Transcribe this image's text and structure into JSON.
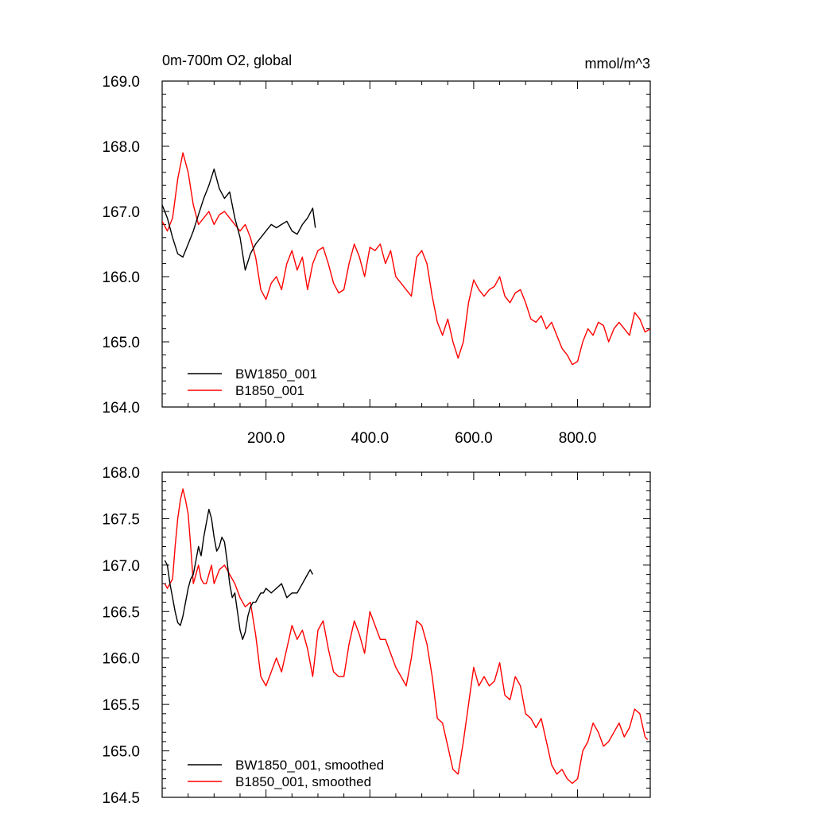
{
  "chart_data": [
    {
      "type": "line",
      "title": "0m-700m O2, global",
      "units": "mmol/m^3",
      "xlim": [
        0,
        940
      ],
      "ylim": [
        164.0,
        169.0
      ],
      "x_ticks": [
        200,
        400,
        600,
        800
      ],
      "x_tick_labels": [
        "200.0",
        "400.0",
        "600.0",
        "800.0"
      ],
      "y_ticks": [
        164,
        165,
        166,
        167,
        168,
        169
      ],
      "y_tick_labels": [
        "164.0",
        "165.0",
        "166.0",
        "167.0",
        "168.0",
        "169.0"
      ],
      "legend": "bottom-left",
      "series": [
        {
          "name": "BW1850_001",
          "color": "#000000",
          "x": [
            0,
            10,
            20,
            30,
            40,
            50,
            60,
            70,
            80,
            90,
            100,
            110,
            120,
            130,
            140,
            150,
            160,
            170,
            180,
            190,
            200,
            210,
            220,
            230,
            240,
            250,
            260,
            270,
            280,
            290,
            295
          ],
          "y": [
            167.1,
            166.9,
            166.6,
            166.35,
            166.3,
            166.5,
            166.7,
            166.95,
            167.2,
            167.4,
            167.65,
            167.35,
            167.2,
            167.3,
            166.9,
            166.6,
            166.1,
            166.35,
            166.5,
            166.6,
            166.7,
            166.8,
            166.75,
            166.8,
            166.85,
            166.7,
            166.65,
            166.8,
            166.9,
            167.05,
            166.75
          ]
        },
        {
          "name": "B1850_001",
          "color": "#ff0000",
          "x": [
            0,
            10,
            20,
            30,
            40,
            50,
            60,
            70,
            80,
            90,
            100,
            110,
            120,
            130,
            140,
            150,
            160,
            170,
            180,
            190,
            200,
            210,
            220,
            230,
            240,
            250,
            260,
            270,
            280,
            290,
            300,
            310,
            320,
            330,
            340,
            350,
            360,
            370,
            380,
            390,
            400,
            410,
            420,
            430,
            440,
            450,
            460,
            470,
            480,
            490,
            500,
            510,
            520,
            530,
            540,
            550,
            560,
            570,
            580,
            590,
            600,
            610,
            620,
            630,
            640,
            650,
            660,
            670,
            680,
            690,
            700,
            710,
            720,
            730,
            740,
            750,
            760,
            770,
            780,
            790,
            800,
            810,
            820,
            830,
            840,
            850,
            860,
            870,
            880,
            890,
            900,
            910,
            920,
            930,
            940
          ],
          "y": [
            166.85,
            166.7,
            166.9,
            167.5,
            167.9,
            167.6,
            167.1,
            166.8,
            166.9,
            167.0,
            166.8,
            166.95,
            167.0,
            166.9,
            166.8,
            166.7,
            166.8,
            166.6,
            166.3,
            165.8,
            165.65,
            165.9,
            166.0,
            165.8,
            166.2,
            166.4,
            166.1,
            166.3,
            165.8,
            166.2,
            166.4,
            166.45,
            166.2,
            165.9,
            165.75,
            165.8,
            166.2,
            166.5,
            166.3,
            166.0,
            166.45,
            166.4,
            166.5,
            166.2,
            166.4,
            166.0,
            165.9,
            165.8,
            165.7,
            166.3,
            166.4,
            166.2,
            165.7,
            165.3,
            165.1,
            165.35,
            165.0,
            164.75,
            165.0,
            165.6,
            165.95,
            165.8,
            165.7,
            165.8,
            165.85,
            166.0,
            165.7,
            165.6,
            165.75,
            165.8,
            165.6,
            165.35,
            165.3,
            165.4,
            165.2,
            165.3,
            165.1,
            164.9,
            164.8,
            164.65,
            164.7,
            165.0,
            165.2,
            165.1,
            165.3,
            165.25,
            165.0,
            165.2,
            165.3,
            165.2,
            165.1,
            165.45,
            165.35,
            165.15,
            165.2
          ]
        }
      ]
    },
    {
      "type": "line",
      "xlim": [
        0,
        940
      ],
      "ylim": [
        164.5,
        168.0
      ],
      "y_ticks": [
        164.5,
        165.0,
        165.5,
        166.0,
        166.5,
        167.0,
        167.5,
        168.0
      ],
      "y_tick_labels": [
        "164.5",
        "165.0",
        "165.5",
        "166.0",
        "166.5",
        "167.0",
        "167.5",
        "168.0"
      ],
      "legend": "bottom-left",
      "series": [
        {
          "name": "BW1850_001, smoothed",
          "color": "#000000",
          "x": [
            5,
            10,
            15,
            20,
            25,
            30,
            35,
            40,
            45,
            50,
            55,
            60,
            65,
            70,
            75,
            80,
            85,
            90,
            95,
            100,
            105,
            110,
            115,
            120,
            125,
            130,
            135,
            140,
            145,
            150,
            155,
            160,
            165,
            170,
            175,
            180,
            185,
            190,
            195,
            200,
            210,
            220,
            230,
            240,
            250,
            260,
            270,
            280,
            285,
            290
          ],
          "y": [
            167.05,
            167.0,
            166.8,
            166.65,
            166.5,
            166.38,
            166.35,
            166.45,
            166.6,
            166.75,
            166.85,
            166.9,
            167.05,
            167.2,
            167.1,
            167.3,
            167.45,
            167.6,
            167.5,
            167.3,
            167.15,
            167.2,
            167.3,
            167.25,
            167.05,
            166.8,
            166.65,
            166.7,
            166.5,
            166.3,
            166.2,
            166.28,
            166.45,
            166.55,
            166.6,
            166.6,
            166.65,
            166.7,
            166.7,
            166.75,
            166.7,
            166.75,
            166.8,
            166.65,
            166.7,
            166.7,
            166.8,
            166.9,
            166.95,
            166.9
          ]
        },
        {
          "name": "B1850_001, smoothed",
          "color": "#ff0000",
          "x": [
            5,
            10,
            15,
            20,
            25,
            30,
            35,
            40,
            45,
            50,
            55,
            60,
            65,
            70,
            75,
            80,
            85,
            90,
            95,
            100,
            110,
            120,
            130,
            140,
            150,
            160,
            170,
            180,
            190,
            200,
            210,
            220,
            230,
            240,
            250,
            260,
            270,
            280,
            290,
            300,
            310,
            320,
            330,
            340,
            350,
            360,
            370,
            380,
            390,
            400,
            410,
            420,
            430,
            440,
            450,
            460,
            470,
            480,
            490,
            500,
            510,
            520,
            530,
            540,
            550,
            560,
            570,
            580,
            590,
            600,
            610,
            620,
            630,
            640,
            650,
            660,
            670,
            680,
            690,
            700,
            710,
            720,
            730,
            740,
            750,
            760,
            770,
            780,
            790,
            800,
            810,
            820,
            830,
            840,
            850,
            860,
            870,
            880,
            890,
            900,
            910,
            920,
            930,
            935
          ],
          "y": [
            166.8,
            166.75,
            166.8,
            166.85,
            167.2,
            167.5,
            167.7,
            167.82,
            167.7,
            167.55,
            167.2,
            166.8,
            166.9,
            167.0,
            166.85,
            166.8,
            166.8,
            166.9,
            167.0,
            166.8,
            166.95,
            167.0,
            166.9,
            166.8,
            166.65,
            166.55,
            166.6,
            166.25,
            165.8,
            165.7,
            165.85,
            166.0,
            165.85,
            166.1,
            166.35,
            166.2,
            166.3,
            166.1,
            165.8,
            166.3,
            166.4,
            166.1,
            165.85,
            165.8,
            165.8,
            166.15,
            166.4,
            166.25,
            166.05,
            166.5,
            166.35,
            166.2,
            166.2,
            166.05,
            165.9,
            165.8,
            165.7,
            166.0,
            166.4,
            166.35,
            166.15,
            165.8,
            165.35,
            165.3,
            165.05,
            164.8,
            164.75,
            165.1,
            165.5,
            165.9,
            165.7,
            165.8,
            165.7,
            165.75,
            165.95,
            165.6,
            165.55,
            165.8,
            165.7,
            165.4,
            165.35,
            165.25,
            165.35,
            165.1,
            164.85,
            164.75,
            164.8,
            164.7,
            164.65,
            164.7,
            165.0,
            165.1,
            165.3,
            165.2,
            165.05,
            165.1,
            165.2,
            165.3,
            165.15,
            165.25,
            165.45,
            165.4,
            165.15,
            165.12
          ]
        }
      ]
    }
  ]
}
